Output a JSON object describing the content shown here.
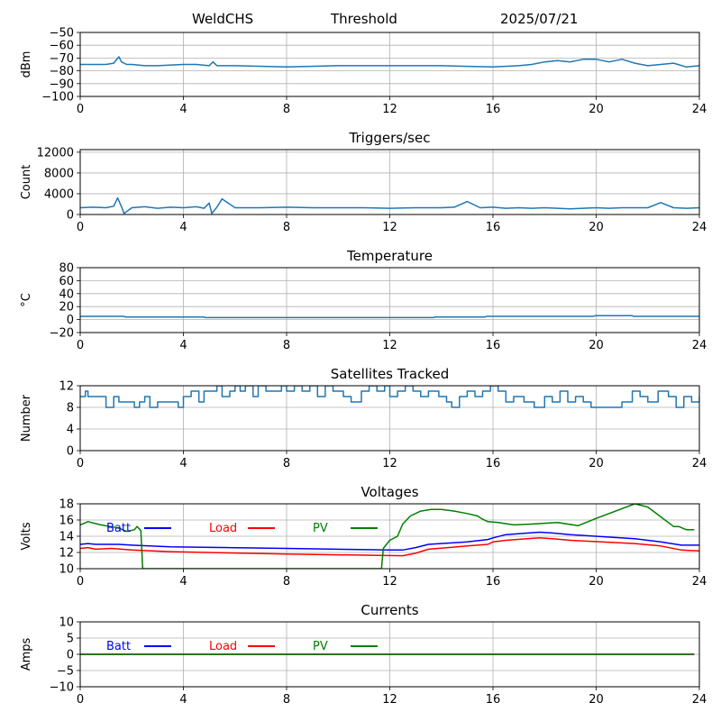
{
  "header": {
    "station": "WeldCHS",
    "mode": "Threshold",
    "date": "2025/07/21"
  },
  "colors": {
    "series_default": "#1f77b4",
    "batt": "#0000ff",
    "load": "#ff0000",
    "pv": "#008000",
    "grid": "#b0b0b0"
  },
  "chart_data": [
    {
      "type": "line",
      "title": "",
      "ylabel": "dBm",
      "xlim": [
        0,
        24
      ],
      "ylim": [
        -100,
        -50
      ],
      "xticks": [
        0,
        4,
        8,
        12,
        16,
        20,
        24
      ],
      "yticks": [
        -100,
        -90,
        -80,
        -70,
        -60,
        -50
      ],
      "grid": true,
      "series": [
        {
          "color": "#1f77b4",
          "x": [
            0,
            0.5,
            1.0,
            1.3,
            1.5,
            1.6,
            1.8,
            2.0,
            2.5,
            3.0,
            4.0,
            4.5,
            5.0,
            5.15,
            5.3,
            6.0,
            8.0,
            10.0,
            12.0,
            14.0,
            16.0,
            17.0,
            17.5,
            18.0,
            18.5,
            19.0,
            19.5,
            20.0,
            20.5,
            21.0,
            21.5,
            22.0,
            23.0,
            23.5,
            24.0
          ],
          "y": [
            -75,
            -75,
            -75,
            -74,
            -69,
            -73,
            -75,
            -75,
            -76,
            -76,
            -75,
            -75,
            -76,
            -73,
            -76,
            -76,
            -77,
            -76,
            -76,
            -76,
            -77,
            -76,
            -75,
            -73,
            -72,
            -73,
            -71,
            -71,
            -73,
            -71,
            -74,
            -76,
            -74,
            -77,
            -76
          ]
        }
      ]
    },
    {
      "type": "line",
      "title": "Triggers/sec",
      "ylabel": "Count",
      "xlim": [
        0,
        24
      ],
      "ylim": [
        0,
        12500
      ],
      "xticks": [
        0,
        4,
        8,
        12,
        16,
        20,
        24
      ],
      "yticks": [
        0,
        4000,
        8000,
        12000
      ],
      "grid": true,
      "series": [
        {
          "color": "#1f77b4",
          "x": [
            0,
            0.5,
            1.0,
            1.3,
            1.45,
            1.6,
            1.7,
            2.0,
            2.5,
            3.0,
            3.5,
            4.0,
            4.5,
            4.8,
            5.0,
            5.1,
            5.3,
            5.5,
            6.0,
            7.0,
            8.0,
            9.0,
            10.0,
            11.0,
            12.0,
            13.0,
            14.0,
            14.5,
            15.0,
            15.5,
            16.0,
            16.5,
            17.0,
            17.5,
            18.0,
            19.0,
            20.0,
            20.5,
            21.0,
            22.0,
            22.5,
            23.0,
            23.5,
            24.0
          ],
          "y": [
            1300,
            1400,
            1300,
            1600,
            3200,
            1500,
            200,
            1300,
            1500,
            1200,
            1400,
            1300,
            1500,
            1200,
            2200,
            200,
            1400,
            3000,
            1300,
            1300,
            1400,
            1300,
            1300,
            1300,
            1200,
            1300,
            1300,
            1400,
            2500,
            1300,
            1400,
            1200,
            1300,
            1200,
            1300,
            1100,
            1300,
            1200,
            1300,
            1300,
            2300,
            1300,
            1200,
            1300
          ]
        }
      ]
    },
    {
      "type": "line",
      "title": "Temperature",
      "ylabel": "°C",
      "xlim": [
        0,
        24
      ],
      "ylim": [
        -20,
        80
      ],
      "xticks": [
        0,
        4,
        8,
        12,
        16,
        20,
        24
      ],
      "yticks": [
        -20,
        0,
        20,
        40,
        60,
        80
      ],
      "grid": true,
      "series": [
        {
          "color": "#1f77b4",
          "x": [
            0,
            1.7,
            1.75,
            4.8,
            4.85,
            13.7,
            13.75,
            15.7,
            15.75,
            19.9,
            19.95,
            21.4,
            21.45,
            24
          ],
          "y": [
            5,
            5,
            4,
            4,
            3,
            3,
            4,
            4,
            5,
            5,
            6,
            6,
            5,
            5
          ]
        }
      ]
    },
    {
      "type": "line",
      "title": "Satellites Tracked",
      "ylabel": "Number",
      "xlim": [
        0,
        24
      ],
      "ylim": [
        0,
        12
      ],
      "xticks": [
        0,
        4,
        8,
        12,
        16,
        20,
        24
      ],
      "yticks": [
        0,
        4,
        8,
        12
      ],
      "grid": true,
      "series": [
        {
          "color": "#1f77b4",
          "step": true,
          "x": [
            0,
            0.2,
            0.3,
            0.8,
            1.0,
            1.3,
            1.5,
            2.1,
            2.3,
            2.5,
            2.7,
            3.0,
            3.5,
            3.8,
            4.0,
            4.3,
            4.6,
            4.8,
            5.3,
            5.5,
            5.8,
            6.0,
            6.2,
            6.4,
            6.7,
            6.9,
            7.2,
            7.5,
            7.8,
            8.0,
            8.3,
            8.6,
            8.9,
            9.2,
            9.5,
            9.8,
            10.2,
            10.5,
            10.9,
            11.2,
            11.5,
            11.8,
            12.0,
            12.3,
            12.6,
            12.9,
            13.2,
            13.5,
            13.9,
            14.2,
            14.4,
            14.7,
            15.0,
            15.3,
            15.6,
            15.9,
            16.2,
            16.5,
            16.8,
            17.2,
            17.6,
            18.0,
            18.3,
            18.6,
            18.9,
            19.2,
            19.5,
            19.8,
            20.2,
            20.6,
            21.0,
            21.4,
            21.7,
            22.0,
            22.4,
            22.8,
            23.1,
            23.4,
            23.7,
            24.0
          ],
          "y": [
            10,
            11,
            10,
            10,
            8,
            10,
            9,
            8,
            9,
            10,
            8,
            9,
            9,
            8,
            10,
            11,
            9,
            11,
            12,
            10,
            11,
            12,
            11,
            12,
            10,
            12,
            11,
            11,
            12,
            11,
            12,
            11,
            12,
            10,
            12,
            11,
            10,
            9,
            11,
            12,
            11,
            12,
            10,
            11,
            12,
            11,
            10,
            11,
            10,
            9,
            8,
            10,
            11,
            10,
            11,
            12,
            11,
            9,
            10,
            9,
            8,
            10,
            9,
            11,
            9,
            10,
            9,
            8,
            8,
            8,
            9,
            11,
            10,
            9,
            11,
            10,
            8,
            10,
            9,
            10
          ]
        }
      ]
    },
    {
      "type": "line",
      "title": "Voltages",
      "ylabel": "Volts",
      "xlim": [
        0,
        24
      ],
      "ylim": [
        10,
        18
      ],
      "xticks": [
        0,
        4,
        8,
        12,
        16,
        20,
        24
      ],
      "yticks": [
        10,
        12,
        14,
        16,
        18
      ],
      "grid": true,
      "legend": [
        "Batt",
        "Load",
        "PV"
      ],
      "series": [
        {
          "name": "Batt",
          "color": "#0000ff",
          "x": [
            0,
            0.3,
            0.6,
            1.5,
            2.0,
            3.5,
            8.0,
            12.0,
            12.5,
            13.0,
            13.5,
            15.0,
            15.8,
            16.0,
            16.5,
            17.8,
            18.3,
            19.0,
            21.5,
            22.5,
            23.3,
            24.0
          ],
          "y": [
            13.0,
            13.1,
            13.0,
            13.0,
            12.9,
            12.7,
            12.5,
            12.3,
            12.3,
            12.6,
            13.0,
            13.3,
            13.6,
            13.8,
            14.2,
            14.5,
            14.4,
            14.2,
            13.7,
            13.3,
            12.9,
            12.9
          ]
        },
        {
          "name": "Load",
          "color": "#ff0000",
          "x": [
            0,
            0.3,
            0.6,
            1.2,
            2.0,
            3.5,
            8.0,
            12.5,
            13.0,
            13.5,
            15.0,
            15.8,
            16.0,
            16.5,
            17.8,
            18.3,
            19.0,
            21.5,
            22.5,
            23.3,
            24.0
          ],
          "y": [
            12.5,
            12.6,
            12.4,
            12.5,
            12.3,
            12.1,
            11.8,
            11.6,
            11.9,
            12.4,
            12.8,
            13.0,
            13.3,
            13.5,
            13.8,
            13.7,
            13.5,
            13.1,
            12.8,
            12.3,
            12.2
          ]
        },
        {
          "name": "PV",
          "color": "#008000",
          "x": [
            0,
            0.3,
            0.8,
            1.5,
            1.8,
            2.1,
            2.2,
            2.35,
            2.42,
            11.68,
            11.75,
            12.0,
            12.3,
            12.5,
            12.8,
            13.2,
            13.6,
            14.0,
            14.5,
            15.0,
            15.4,
            15.6,
            15.8,
            16.2,
            16.8,
            17.5,
            18.5,
            19.3,
            20.0,
            21.5,
            22.0,
            23.0,
            23.2,
            23.5,
            23.8
          ],
          "y": [
            15.4,
            15.8,
            15.4,
            15.0,
            14.6,
            14.8,
            15.2,
            14.7,
            10.0,
            10.0,
            12.5,
            13.5,
            14.0,
            15.5,
            16.5,
            17.1,
            17.3,
            17.3,
            17.1,
            16.8,
            16.5,
            16.1,
            15.8,
            15.7,
            15.4,
            15.5,
            15.7,
            15.3,
            16.2,
            18.0,
            17.6,
            15.2,
            15.2,
            14.8,
            14.8
          ]
        }
      ]
    },
    {
      "type": "line",
      "title": "Currents",
      "ylabel": "Amps",
      "xlim": [
        0,
        24
      ],
      "ylim": [
        -10,
        10
      ],
      "xticks": [
        0,
        4,
        8,
        12,
        16,
        20,
        24
      ],
      "yticks": [
        -10,
        -5,
        0,
        5,
        10
      ],
      "grid": true,
      "legend": [
        "Batt",
        "Load",
        "PV"
      ],
      "series": [
        {
          "name": "Batt",
          "color": "#0000ff",
          "x": [
            0,
            23.8
          ],
          "y": [
            0,
            0
          ]
        },
        {
          "name": "Load",
          "color": "#ff0000",
          "x": [
            0,
            23.8
          ],
          "y": [
            0,
            0
          ]
        },
        {
          "name": "PV",
          "color": "#008000",
          "x": [
            0,
            23.8
          ],
          "y": [
            0,
            0
          ]
        }
      ]
    }
  ]
}
